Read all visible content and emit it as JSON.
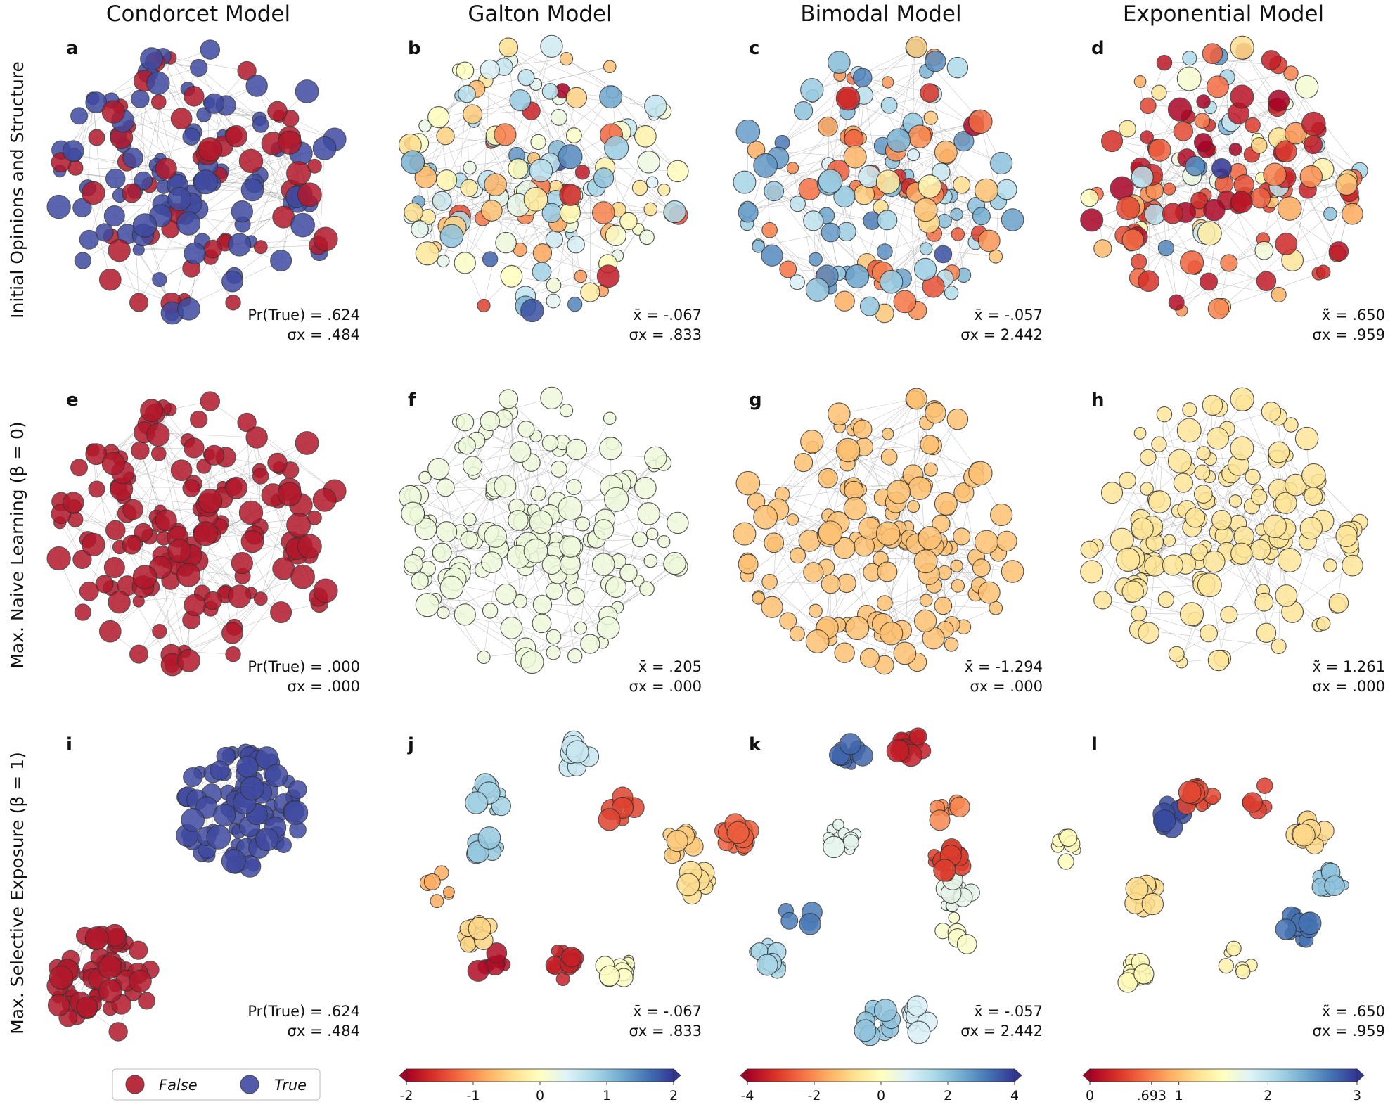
{
  "chart_data": {
    "type": "network-grid",
    "columns": [
      "Condorcet Model",
      "Galton Model",
      "Bimodal Model",
      "Exponential Model"
    ],
    "rows": [
      "Initial Opinions and Structure",
      "Max. Naive Learning (β = 0)",
      "Max. Selective Exposure (β = 1)"
    ],
    "panels": [
      {
        "letter": "a",
        "row": 0,
        "col": 0,
        "stat1": "Pr(True) =  .624",
        "stat2": "σx = .484"
      },
      {
        "letter": "b",
        "row": 0,
        "col": 1,
        "stat1": "x̄ = -.067",
        "stat2": "σx = .833"
      },
      {
        "letter": "c",
        "row": 0,
        "col": 2,
        "stat1": "x̄ = -.057",
        "stat2": "σx = 2.442"
      },
      {
        "letter": "d",
        "row": 0,
        "col": 3,
        "stat1": "x̃ = .650",
        "stat2": "σx = .959"
      },
      {
        "letter": "e",
        "row": 1,
        "col": 0,
        "stat1": "Pr(True) = .000",
        "stat2": "σx = .000"
      },
      {
        "letter": "f",
        "row": 1,
        "col": 1,
        "stat1": "x̄ = .205",
        "stat2": "σx = .000"
      },
      {
        "letter": "g",
        "row": 1,
        "col": 2,
        "stat1": "x̄ = -1.294",
        "stat2": "σx = .000"
      },
      {
        "letter": "h",
        "row": 1,
        "col": 3,
        "stat1": "x̃ = 1.261",
        "stat2": "σx = .000"
      },
      {
        "letter": "i",
        "row": 2,
        "col": 0,
        "stat1": "Pr(True) =  .624",
        "stat2": "σx = .484"
      },
      {
        "letter": "j",
        "row": 2,
        "col": 1,
        "stat1": "x̄ = -.067",
        "stat2": "σx = .833"
      },
      {
        "letter": "k",
        "row": 2,
        "col": 2,
        "stat1": "x̄ = -.057",
        "stat2": "σx = 2.442"
      },
      {
        "letter": "l",
        "row": 2,
        "col": 3,
        "stat1": "x̃ = .650",
        "stat2": "σx = .959"
      }
    ],
    "legend": [
      {
        "label": "False",
        "color": "#b2182b"
      },
      {
        "label": "True",
        "color": "#3f4aa0"
      }
    ],
    "colorbars": [
      {
        "col": 1,
        "min": -2,
        "max": 2,
        "ticks": [
          "-2",
          "-1",
          "0",
          "1",
          "2"
        ],
        "tick_values": [
          -2,
          -1,
          0,
          1,
          2
        ]
      },
      {
        "col": 2,
        "min": -4,
        "max": 4,
        "ticks": [
          "-4",
          "-2",
          "0",
          "2",
          "4"
        ],
        "tick_values": [
          -4,
          -2,
          0,
          2,
          4
        ]
      },
      {
        "col": 3,
        "min": 0,
        "max": 3,
        "ticks": [
          "0",
          ".693",
          "1",
          "2",
          "3"
        ],
        "tick_values": [
          0,
          0.693,
          1,
          2,
          3
        ]
      }
    ],
    "colormap": "RdYlBu",
    "converged_values": {
      "condorcet": "False",
      "galton": 0.205,
      "bimodal": -1.294,
      "exponential": 1.261
    }
  }
}
